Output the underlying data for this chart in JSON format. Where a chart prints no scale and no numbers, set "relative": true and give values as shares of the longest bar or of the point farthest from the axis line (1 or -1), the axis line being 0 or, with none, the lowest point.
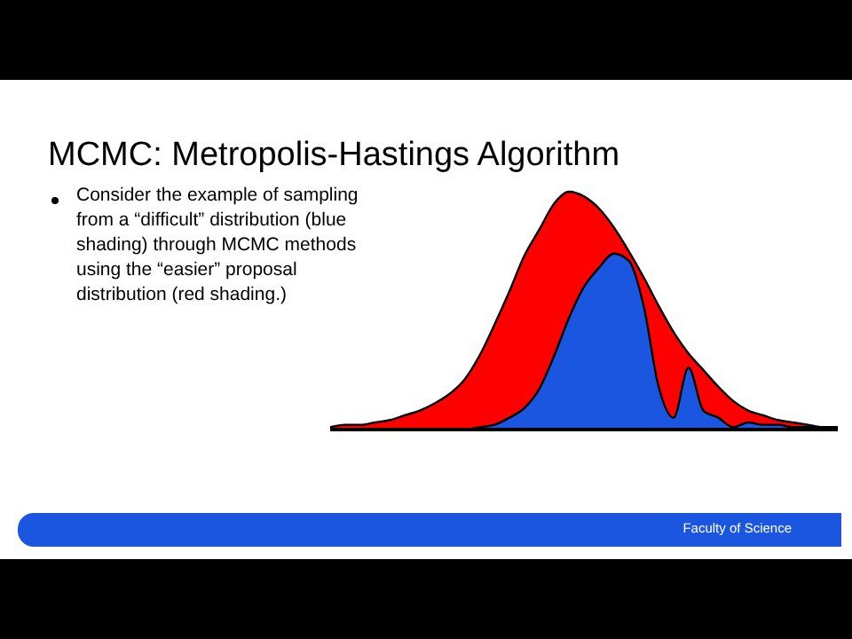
{
  "chart_data": {
    "type": "area",
    "title": "MCMC: Metropolis-Hastings Algorithm",
    "annotations": [
      "Consider the example of sampling from a “difficult” distribution (blue shading) through MCMC methods using the “easier” proposal distribution (red shading.)",
      "Faculty of Science"
    ],
    "relative": true,
    "categories": [
      null,
      null,
      null,
      null,
      null,
      null,
      null,
      null,
      null,
      null,
      null,
      null,
      null,
      null,
      null,
      null,
      null,
      null,
      null,
      null,
      null,
      null,
      null,
      null,
      null,
      null,
      null,
      null,
      null,
      null,
      null,
      null,
      null,
      null,
      null
    ],
    "series": [
      {
        "color": "#ff0000",
        "values": [
          0.01,
          0.02,
          0.02,
          0.03,
          0.04,
          0.06,
          0.08,
          0.11,
          0.15,
          0.21,
          0.31,
          0.44,
          0.58,
          0.73,
          0.84,
          0.95,
          1,
          0.98,
          0.93,
          0.85,
          0.75,
          0.64,
          0.52,
          0.41,
          0.32,
          0.25,
          0.18,
          0.12,
          0.08,
          0.06,
          0.04,
          0.03,
          0.02,
          0.01,
          0.01
        ]
      },
      {
        "color": "#1a56e0",
        "values": [
          0,
          0,
          0,
          0,
          0,
          0,
          0,
          0,
          0,
          0,
          0.01,
          0.02,
          0.05,
          0.09,
          0.17,
          0.31,
          0.47,
          0.6,
          0.68,
          0.74,
          0.71,
          0.52,
          0.18,
          0.05,
          0.26,
          0.08,
          0.05,
          0.01,
          0.03,
          0.02,
          0.02,
          0.01,
          0.01,
          0,
          0
        ]
      }
    ]
  }
}
